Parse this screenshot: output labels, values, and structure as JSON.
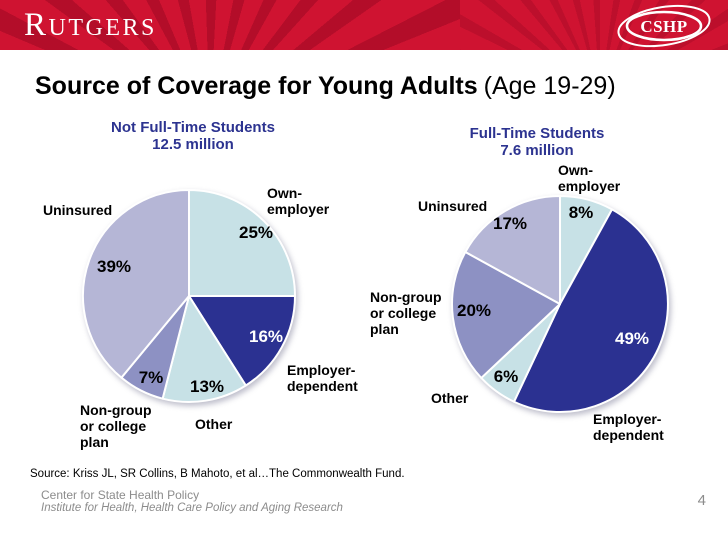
{
  "banner": {
    "rutgers_wordmark": "Rutgers",
    "cshp_wordmark": "CSHP",
    "banner_color": "#cf1331"
  },
  "title": {
    "main": "Source of Coverage for Young Adults",
    "suffix": "(Age 19-29)"
  },
  "chart_data": [
    {
      "type": "pie",
      "title": "Not Full-Time Students",
      "subtitle": "12.5 million",
      "start_angle_deg": 0,
      "direction": "clockwise",
      "slices": [
        {
          "label": "Own-employer",
          "value": 25,
          "pct": "25%",
          "color": "#c7e1e6"
        },
        {
          "label": "Employer-dependent",
          "value": 16,
          "pct": "16%",
          "color": "#2b3191"
        },
        {
          "label": "Other",
          "value": 13,
          "pct": "13%",
          "color": "#c7e1e6"
        },
        {
          "label": "Non-group or college plan",
          "value": 7,
          "pct": "7%",
          "color": "#8d91c3"
        },
        {
          "label": "Uninsured",
          "value": 39,
          "pct": "39%",
          "color": "#b5b6d6"
        }
      ]
    },
    {
      "type": "pie",
      "title": "Full-Time Students",
      "subtitle": "7.6 million",
      "start_angle_deg": 0,
      "direction": "clockwise",
      "slices": [
        {
          "label": "Own-employer",
          "value": 8,
          "pct": "8%",
          "color": "#c7e1e6"
        },
        {
          "label": "Employer-dependent",
          "value": 49,
          "pct": "49%",
          "color": "#2b3191"
        },
        {
          "label": "Other",
          "value": 6,
          "pct": "6%",
          "color": "#c7e1e6"
        },
        {
          "label": "Non-group or college plan",
          "value": 20,
          "pct": "20%",
          "color": "#8d91c3"
        },
        {
          "label": "Uninsured",
          "value": 17,
          "pct": "17%",
          "color": "#b5b6d6"
        }
      ]
    }
  ],
  "source": "Source: Kriss JL, SR Collins, B Mahoto, et al…The Commonwealth Fund.",
  "footer": {
    "line1": "Center for State Health Policy",
    "line2": "Institute for Health, Health Care Policy and Aging Research",
    "page": "4"
  }
}
